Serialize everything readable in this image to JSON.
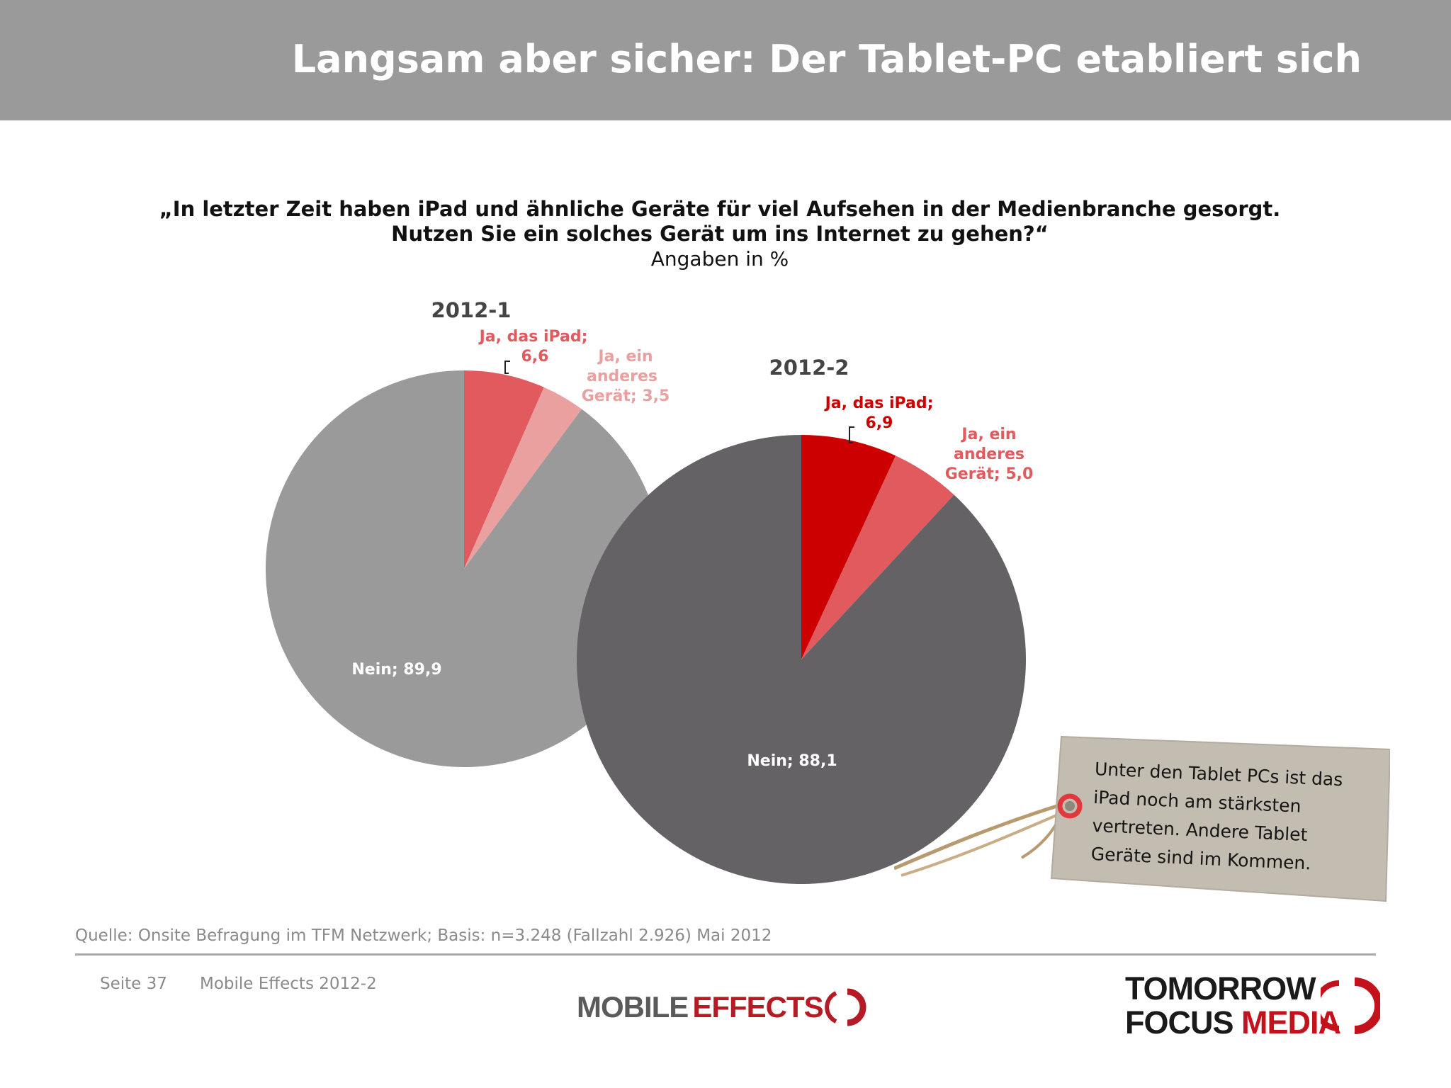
{
  "header": {
    "title": "Langsam aber sicher: Der Tablet-PC etabliert sich"
  },
  "question": {
    "line1": "„In letzter Zeit haben iPad und ähnliche Geräte für viel Aufsehen in der Medienbranche gesorgt.",
    "line2": "Nutzen Sie ein solches Gerät um ins Internet zu gehen?“",
    "line3": "Angaben in %"
  },
  "chart_data": [
    {
      "type": "pie",
      "title": "2012-1",
      "slices": [
        {
          "label": "Ja, das iPad;",
          "value": 6.6,
          "value_label": "6,6",
          "color": "#e05a5e"
        },
        {
          "label": "Ja, ein anderes Gerät;",
          "value": 3.5,
          "value_label": "3,5",
          "color": "#eba0a0"
        },
        {
          "label": "Nein;",
          "value": 89.9,
          "value_label": "89,9",
          "color": "#9a9a9a"
        }
      ]
    },
    {
      "type": "pie",
      "title": "2012-2",
      "slices": [
        {
          "label": "Ja, das iPad;",
          "value": 6.9,
          "value_label": "6,9",
          "color": "#cc0000"
        },
        {
          "label": "Ja, ein anderes Gerät;",
          "value": 5.0,
          "value_label": "5,0",
          "color": "#e05a5e"
        },
        {
          "label": "Nein;",
          "value": 88.1,
          "value_label": "88,1",
          "color": "#646264"
        }
      ]
    }
  ],
  "note": {
    "lines": [
      "Unter den Tablet PCs ist das",
      "iPad noch am stärksten",
      "vertreten. Andere Tablet",
      "Geräte sind im Kommen."
    ]
  },
  "footer": {
    "source": "Quelle: Onsite Befragung im TFM Netzwerk; Basis: n=3.248 (Fallzahl 2.926) Mai 2012",
    "page": "Seite 37",
    "publication": "Mobile Effects 2012-2",
    "logo_mobile": "MOBILE",
    "logo_effects": "EFFECTS",
    "logo_tomorrow": "TOMORROW",
    "logo_focus": "FOCUS",
    "logo_media": "MEDIA"
  }
}
